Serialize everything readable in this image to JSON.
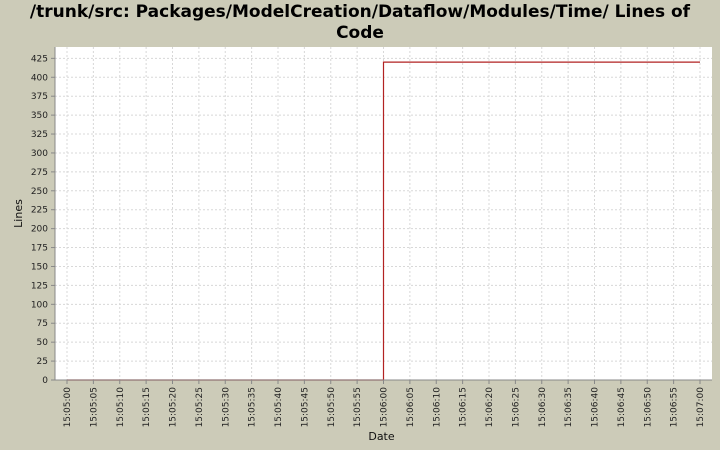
{
  "title_line1": "/trunk/src: Packages/ModelCreation/Dataflow/Modules/Time/ Lines of",
  "title_line2": "Code",
  "colors": {
    "background": "#cccbb8",
    "plot_background": "#ffffff",
    "grid": "#d8d8d8",
    "series": "#b22222"
  },
  "chart_data": {
    "type": "line",
    "step": true,
    "title": "/trunk/src: Packages/ModelCreation/Dataflow/Modules/Time/ Lines of Code",
    "xlabel": "Date",
    "ylabel": "Lines",
    "ylim": [
      0,
      440
    ],
    "yticks": [
      0,
      25,
      50,
      75,
      100,
      125,
      150,
      175,
      200,
      225,
      250,
      275,
      300,
      325,
      350,
      375,
      400,
      425
    ],
    "xlim": [
      "15:05:00",
      "15:07:00"
    ],
    "xticks": [
      "15:05:00",
      "15:05:05",
      "15:05:10",
      "15:05:15",
      "15:05:20",
      "15:05:25",
      "15:05:30",
      "15:05:35",
      "15:05:40",
      "15:05:45",
      "15:05:50",
      "15:05:55",
      "15:06:00",
      "15:06:05",
      "15:06:10",
      "15:06:15",
      "15:06:20",
      "15:06:25",
      "15:06:30",
      "15:06:35",
      "15:06:40",
      "15:06:45",
      "15:06:50",
      "15:06:55",
      "15:07:00"
    ],
    "grid": true,
    "series": [
      {
        "x": [
          "15:05:00",
          "15:06:00",
          "15:06:00",
          "15:07:00"
        ],
        "y": [
          0,
          0,
          420,
          420
        ]
      }
    ]
  }
}
